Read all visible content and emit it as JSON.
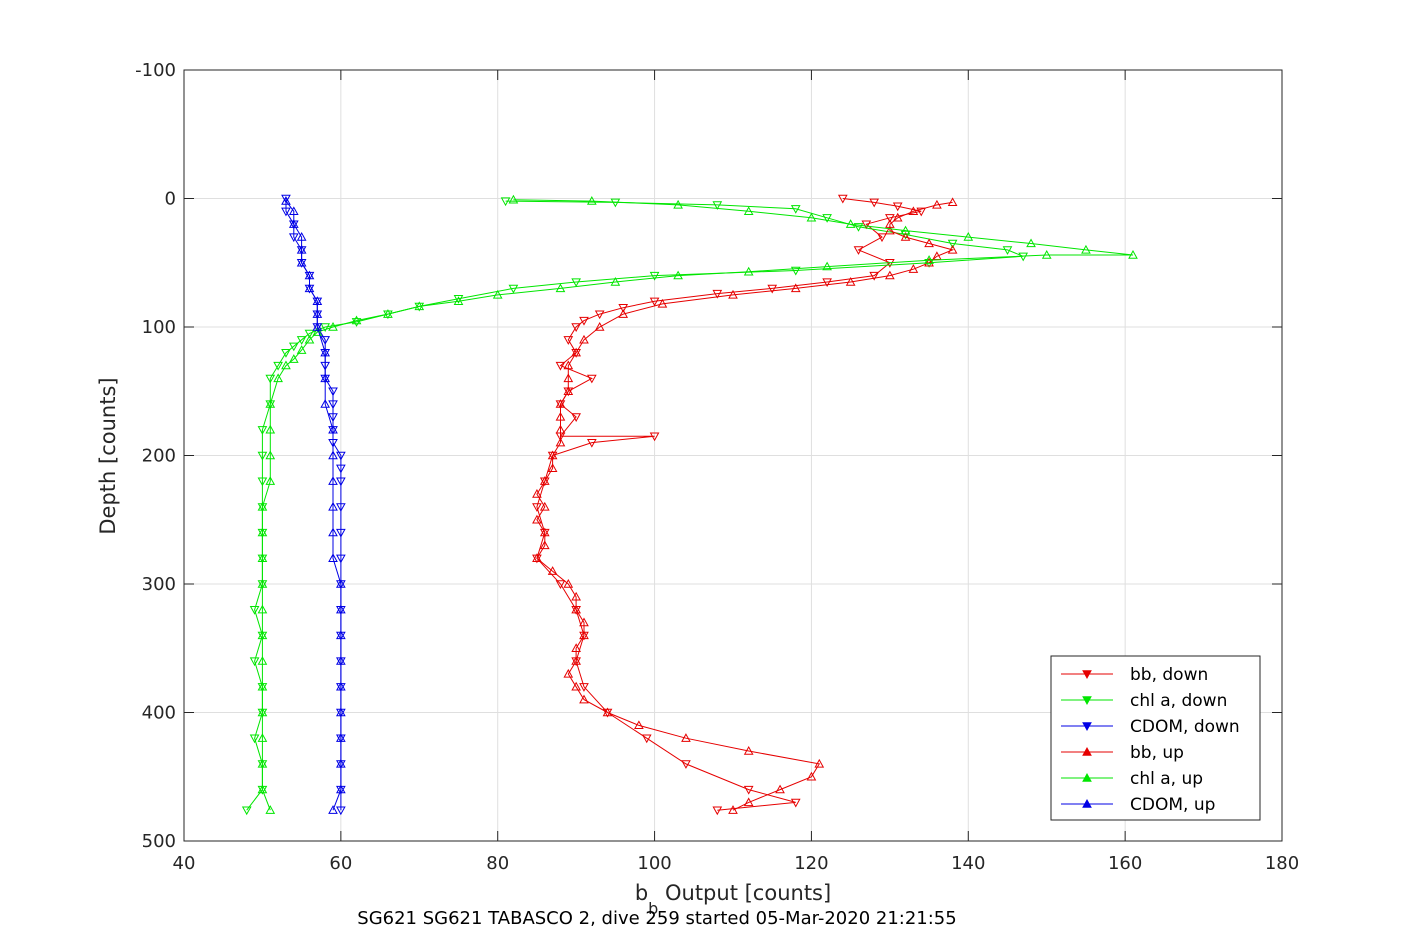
{
  "chart_data": {
    "type": "scatter",
    "title": "",
    "caption": "SG621 SG621 TABASCO 2, dive 259 started 05-Mar-2020 21:21:55",
    "xlabel_main": "b",
    "xlabel_sub": "b",
    "xlabel_rest": " Output [counts]",
    "ylabel": "Depth [counts]",
    "xlim": [
      40,
      180
    ],
    "ylim": [
      -100,
      500
    ],
    "y_reversed": true,
    "grid": true,
    "legend_position": "bottom-right",
    "xticks": [
      "40",
      "60",
      "80",
      "100",
      "120",
      "140",
      "160",
      "180"
    ],
    "yticks": [
      "-100",
      "0",
      "100",
      "200",
      "300",
      "400",
      "500"
    ],
    "series": [
      {
        "name": "bb, down",
        "color": "#e60000",
        "marker": "triangle-down",
        "points": [
          [
            124,
            0
          ],
          [
            128,
            3
          ],
          [
            131,
            6
          ],
          [
            134,
            10
          ],
          [
            130,
            15
          ],
          [
            127,
            20
          ],
          [
            129,
            30
          ],
          [
            126,
            40
          ],
          [
            130,
            50
          ],
          [
            128,
            60
          ],
          [
            122,
            65
          ],
          [
            115,
            70
          ],
          [
            108,
            74
          ],
          [
            100,
            80
          ],
          [
            96,
            85
          ],
          [
            93,
            90
          ],
          [
            91,
            95
          ],
          [
            90,
            100
          ],
          [
            89,
            110
          ],
          [
            90,
            120
          ],
          [
            88,
            130
          ],
          [
            92,
            140
          ],
          [
            89,
            150
          ],
          [
            88,
            160
          ],
          [
            90,
            170
          ],
          [
            88,
            185
          ],
          [
            100,
            185
          ],
          [
            92,
            190
          ],
          [
            87,
            200
          ],
          [
            86,
            220
          ],
          [
            85,
            240
          ],
          [
            86,
            260
          ],
          [
            85,
            280
          ],
          [
            88,
            300
          ],
          [
            90,
            320
          ],
          [
            91,
            340
          ],
          [
            90,
            360
          ],
          [
            91,
            380
          ],
          [
            94,
            400
          ],
          [
            99,
            420
          ],
          [
            104,
            440
          ],
          [
            112,
            460
          ],
          [
            118,
            470
          ],
          [
            108,
            476
          ]
        ]
      },
      {
        "name": "chl a, down",
        "color": "#00e600",
        "marker": "triangle-down",
        "points": [
          [
            81,
            2
          ],
          [
            95,
            3
          ],
          [
            108,
            5
          ],
          [
            118,
            8
          ],
          [
            122,
            15
          ],
          [
            126,
            22
          ],
          [
            132,
            28
          ],
          [
            138,
            35
          ],
          [
            145,
            40
          ],
          [
            147,
            45
          ],
          [
            135,
            50
          ],
          [
            118,
            56
          ],
          [
            100,
            60
          ],
          [
            90,
            65
          ],
          [
            82,
            70
          ],
          [
            75,
            78
          ],
          [
            70,
            84
          ],
          [
            66,
            90
          ],
          [
            62,
            96
          ],
          [
            58,
            100
          ],
          [
            56,
            105
          ],
          [
            55,
            110
          ],
          [
            54,
            115
          ],
          [
            53,
            120
          ],
          [
            52,
            130
          ],
          [
            51,
            140
          ],
          [
            51,
            160
          ],
          [
            50,
            180
          ],
          [
            50,
            200
          ],
          [
            50,
            220
          ],
          [
            50,
            240
          ],
          [
            50,
            260
          ],
          [
            50,
            280
          ],
          [
            50,
            300
          ],
          [
            49,
            320
          ],
          [
            50,
            340
          ],
          [
            49,
            360
          ],
          [
            50,
            380
          ],
          [
            50,
            400
          ],
          [
            49,
            420
          ],
          [
            50,
            440
          ],
          [
            50,
            460
          ],
          [
            48,
            476
          ]
        ]
      },
      {
        "name": "CDOM, down",
        "color": "#0000e6",
        "marker": "triangle-down",
        "points": [
          [
            53,
            0
          ],
          [
            53,
            10
          ],
          [
            54,
            20
          ],
          [
            54,
            30
          ],
          [
            55,
            40
          ],
          [
            55,
            50
          ],
          [
            56,
            60
          ],
          [
            56,
            70
          ],
          [
            57,
            80
          ],
          [
            57,
            90
          ],
          [
            57,
            100
          ],
          [
            58,
            110
          ],
          [
            58,
            120
          ],
          [
            58,
            130
          ],
          [
            58,
            140
          ],
          [
            59,
            150
          ],
          [
            59,
            160
          ],
          [
            59,
            170
          ],
          [
            59,
            180
          ],
          [
            59,
            190
          ],
          [
            60,
            200
          ],
          [
            60,
            210
          ],
          [
            60,
            220
          ],
          [
            60,
            240
          ],
          [
            60,
            260
          ],
          [
            60,
            280
          ],
          [
            60,
            300
          ],
          [
            60,
            320
          ],
          [
            60,
            340
          ],
          [
            60,
            360
          ],
          [
            60,
            380
          ],
          [
            60,
            400
          ],
          [
            60,
            420
          ],
          [
            60,
            440
          ],
          [
            60,
            460
          ],
          [
            60,
            476
          ]
        ]
      },
      {
        "name": "bb, up",
        "color": "#e60000",
        "marker": "triangle-up",
        "points": [
          [
            110,
            476
          ],
          [
            112,
            470
          ],
          [
            116,
            460
          ],
          [
            120,
            450
          ],
          [
            121,
            440
          ],
          [
            112,
            430
          ],
          [
            104,
            420
          ],
          [
            98,
            410
          ],
          [
            94,
            400
          ],
          [
            91,
            390
          ],
          [
            90,
            380
          ],
          [
            89,
            370
          ],
          [
            90,
            360
          ],
          [
            90,
            350
          ],
          [
            91,
            340
          ],
          [
            91,
            330
          ],
          [
            90,
            320
          ],
          [
            90,
            310
          ],
          [
            89,
            300
          ],
          [
            87,
            290
          ],
          [
            85,
            280
          ],
          [
            86,
            270
          ],
          [
            86,
            260
          ],
          [
            85,
            250
          ],
          [
            86,
            240
          ],
          [
            85,
            230
          ],
          [
            86,
            220
          ],
          [
            87,
            210
          ],
          [
            87,
            200
          ],
          [
            88,
            190
          ],
          [
            88,
            180
          ],
          [
            88,
            170
          ],
          [
            88,
            160
          ],
          [
            89,
            150
          ],
          [
            89,
            140
          ],
          [
            89,
            130
          ],
          [
            90,
            120
          ],
          [
            91,
            110
          ],
          [
            93,
            100
          ],
          [
            96,
            90
          ],
          [
            101,
            82
          ],
          [
            110,
            75
          ],
          [
            118,
            70
          ],
          [
            125,
            65
          ],
          [
            130,
            60
          ],
          [
            133,
            55
          ],
          [
            135,
            50
          ],
          [
            136,
            45
          ],
          [
            138,
            40
          ],
          [
            135,
            35
          ],
          [
            132,
            30
          ],
          [
            130,
            25
          ],
          [
            130,
            20
          ],
          [
            131,
            15
          ],
          [
            133,
            10
          ],
          [
            136,
            5
          ],
          [
            138,
            3
          ]
        ]
      },
      {
        "name": "chl a, up",
        "color": "#00e600",
        "marker": "triangle-up",
        "points": [
          [
            51,
            476
          ],
          [
            50,
            460
          ],
          [
            50,
            440
          ],
          [
            50,
            420
          ],
          [
            50,
            400
          ],
          [
            50,
            380
          ],
          [
            50,
            360
          ],
          [
            50,
            340
          ],
          [
            50,
            320
          ],
          [
            50,
            300
          ],
          [
            50,
            280
          ],
          [
            50,
            260
          ],
          [
            50,
            240
          ],
          [
            51,
            220
          ],
          [
            51,
            200
          ],
          [
            51,
            180
          ],
          [
            51,
            160
          ],
          [
            52,
            140
          ],
          [
            53,
            130
          ],
          [
            54,
            125
          ],
          [
            55,
            118
          ],
          [
            56,
            110
          ],
          [
            57,
            104
          ],
          [
            59,
            100
          ],
          [
            62,
            95
          ],
          [
            66,
            90
          ],
          [
            70,
            84
          ],
          [
            75,
            80
          ],
          [
            80,
            75
          ],
          [
            88,
            70
          ],
          [
            95,
            65
          ],
          [
            103,
            60
          ],
          [
            112,
            57
          ],
          [
            122,
            53
          ],
          [
            135,
            48
          ],
          [
            150,
            44
          ],
          [
            161,
            44
          ],
          [
            155,
            40
          ],
          [
            148,
            35
          ],
          [
            140,
            30
          ],
          [
            132,
            25
          ],
          [
            125,
            20
          ],
          [
            120,
            15
          ],
          [
            112,
            10
          ],
          [
            103,
            5
          ],
          [
            92,
            2
          ],
          [
            82,
            1
          ]
        ]
      },
      {
        "name": "CDOM, up",
        "color": "#0000e6",
        "marker": "triangle-up",
        "points": [
          [
            59,
            476
          ],
          [
            60,
            460
          ],
          [
            60,
            440
          ],
          [
            60,
            420
          ],
          [
            60,
            400
          ],
          [
            60,
            380
          ],
          [
            60,
            360
          ],
          [
            60,
            340
          ],
          [
            60,
            320
          ],
          [
            60,
            300
          ],
          [
            59,
            280
          ],
          [
            59,
            260
          ],
          [
            59,
            240
          ],
          [
            59,
            220
          ],
          [
            59,
            200
          ],
          [
            59,
            180
          ],
          [
            58,
            160
          ],
          [
            58,
            140
          ],
          [
            58,
            120
          ],
          [
            57,
            100
          ],
          [
            57,
            90
          ],
          [
            57,
            80
          ],
          [
            56,
            70
          ],
          [
            56,
            60
          ],
          [
            55,
            50
          ],
          [
            55,
            40
          ],
          [
            55,
            30
          ],
          [
            54,
            20
          ],
          [
            54,
            10
          ],
          [
            53,
            2
          ]
        ]
      }
    ]
  }
}
